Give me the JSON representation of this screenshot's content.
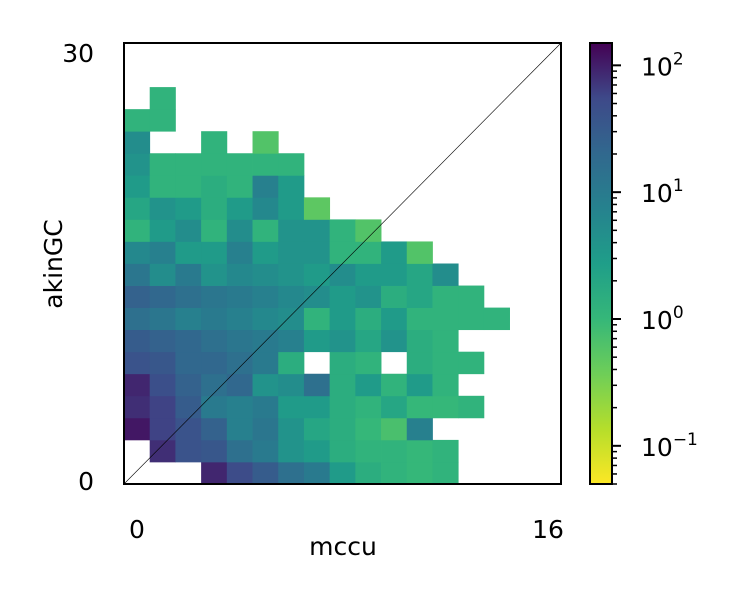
{
  "chart_data": {
    "type": "heatmap",
    "xlabel": "mccu",
    "ylabel": "akinGC",
    "xlim": [
      0,
      16
    ],
    "ylim": [
      0,
      30
    ],
    "x_ticks": [
      "0",
      "16"
    ],
    "y_ticks": [
      "0",
      "30"
    ],
    "x_bins": 17,
    "y_bins": 20,
    "bin_width": 0.941,
    "bin_height": 1.5,
    "diagonal_line": true,
    "grid": false,
    "colormap": "viridis_r",
    "color_scale": "log",
    "colorbar": {
      "range": [
        0.05,
        150
      ],
      "position": "right",
      "ticks": [
        {
          "value": 0.1,
          "base": "10",
          "exp": "−1"
        },
        {
          "value": 1,
          "base": "10",
          "exp": "0"
        },
        {
          "value": 10,
          "base": "10",
          "exp": "1"
        },
        {
          "value": 100,
          "base": "10",
          "exp": "2"
        }
      ]
    },
    "cells": [
      {
        "row": 0,
        "col": 3,
        "value": 90
      },
      {
        "row": 0,
        "col": 4,
        "value": 50
      },
      {
        "row": 0,
        "col": 5,
        "value": 30
      },
      {
        "row": 0,
        "col": 6,
        "value": 15
      },
      {
        "row": 0,
        "col": 7,
        "value": 10
      },
      {
        "row": 0,
        "col": 8,
        "value": 3
      },
      {
        "row": 0,
        "col": 9,
        "value": 1.5
      },
      {
        "row": 0,
        "col": 10,
        "value": 1.2
      },
      {
        "row": 0,
        "col": 11,
        "value": 1
      },
      {
        "row": 0,
        "col": 12,
        "value": 1.2
      },
      {
        "row": 1,
        "col": 1,
        "value": 80
      },
      {
        "row": 1,
        "col": 2,
        "value": 40
      },
      {
        "row": 1,
        "col": 3,
        "value": 35
      },
      {
        "row": 1,
        "col": 4,
        "value": 15
      },
      {
        "row": 1,
        "col": 5,
        "value": 10
      },
      {
        "row": 1,
        "col": 6,
        "value": 4
      },
      {
        "row": 1,
        "col": 7,
        "value": 3
      },
      {
        "row": 1,
        "col": 8,
        "value": 1.5
      },
      {
        "row": 1,
        "col": 9,
        "value": 1.2
      },
      {
        "row": 1,
        "col": 10,
        "value": 1.2
      },
      {
        "row": 1,
        "col": 11,
        "value": 1
      },
      {
        "row": 1,
        "col": 12,
        "value": 1.2
      },
      {
        "row": 2,
        "col": 0,
        "value": 110
      },
      {
        "row": 2,
        "col": 1,
        "value": 60
      },
      {
        "row": 2,
        "col": 2,
        "value": 40
      },
      {
        "row": 2,
        "col": 3,
        "value": 25
      },
      {
        "row": 2,
        "col": 4,
        "value": 8
      },
      {
        "row": 2,
        "col": 5,
        "value": 12
      },
      {
        "row": 2,
        "col": 6,
        "value": 4
      },
      {
        "row": 2,
        "col": 7,
        "value": 2
      },
      {
        "row": 2,
        "col": 8,
        "value": 1.5
      },
      {
        "row": 2,
        "col": 9,
        "value": 1
      },
      {
        "row": 2,
        "col": 10,
        "value": 0.7
      },
      {
        "row": 2,
        "col": 11,
        "value": 8
      },
      {
        "row": 3,
        "col": 0,
        "value": 80
      },
      {
        "row": 3,
        "col": 1,
        "value": 60
      },
      {
        "row": 3,
        "col": 2,
        "value": 30
      },
      {
        "row": 3,
        "col": 3,
        "value": 10
      },
      {
        "row": 3,
        "col": 4,
        "value": 8
      },
      {
        "row": 3,
        "col": 5,
        "value": 10
      },
      {
        "row": 3,
        "col": 6,
        "value": 3
      },
      {
        "row": 3,
        "col": 7,
        "value": 3
      },
      {
        "row": 3,
        "col": 8,
        "value": 1.5
      },
      {
        "row": 3,
        "col": 9,
        "value": 1.2
      },
      {
        "row": 3,
        "col": 10,
        "value": 2
      },
      {
        "row": 3,
        "col": 11,
        "value": 1
      },
      {
        "row": 3,
        "col": 12,
        "value": 1
      },
      {
        "row": 3,
        "col": 13,
        "value": 1.2
      },
      {
        "row": 4,
        "col": 0,
        "value": 90
      },
      {
        "row": 4,
        "col": 1,
        "value": 45
      },
      {
        "row": 4,
        "col": 2,
        "value": 25
      },
      {
        "row": 4,
        "col": 3,
        "value": 15
      },
      {
        "row": 4,
        "col": 4,
        "value": 20
      },
      {
        "row": 4,
        "col": 5,
        "value": 4
      },
      {
        "row": 4,
        "col": 6,
        "value": 5
      },
      {
        "row": 4,
        "col": 7,
        "value": 15
      },
      {
        "row": 4,
        "col": 8,
        "value": 1.5
      },
      {
        "row": 4,
        "col": 9,
        "value": 3
      },
      {
        "row": 4,
        "col": 10,
        "value": 1.2
      },
      {
        "row": 4,
        "col": 11,
        "value": 3
      },
      {
        "row": 4,
        "col": 12,
        "value": 1.2
      },
      {
        "row": 5,
        "col": 0,
        "value": 40
      },
      {
        "row": 5,
        "col": 1,
        "value": 35
      },
      {
        "row": 5,
        "col": 2,
        "value": 20
      },
      {
        "row": 5,
        "col": 3,
        "value": 20
      },
      {
        "row": 5,
        "col": 4,
        "value": 15
      },
      {
        "row": 5,
        "col": 5,
        "value": 10
      },
      {
        "row": 5,
        "col": 6,
        "value": 1.5
      },
      {
        "row": 5,
        "col": 8,
        "value": 1.5
      },
      {
        "row": 5,
        "col": 9,
        "value": 1.2
      },
      {
        "row": 5,
        "col": 11,
        "value": 1.5
      },
      {
        "row": 5,
        "col": 12,
        "value": 1.2
      },
      {
        "row": 5,
        "col": 13,
        "value": 1.2
      },
      {
        "row": 6,
        "col": 0,
        "value": 30
      },
      {
        "row": 6,
        "col": 1,
        "value": 25
      },
      {
        "row": 6,
        "col": 2,
        "value": 20
      },
      {
        "row": 6,
        "col": 3,
        "value": 15
      },
      {
        "row": 6,
        "col": 4,
        "value": 12
      },
      {
        "row": 6,
        "col": 5,
        "value": 10
      },
      {
        "row": 6,
        "col": 6,
        "value": 8
      },
      {
        "row": 6,
        "col": 7,
        "value": 3
      },
      {
        "row": 6,
        "col": 8,
        "value": 4
      },
      {
        "row": 6,
        "col": 9,
        "value": 2
      },
      {
        "row": 6,
        "col": 10,
        "value": 4
      },
      {
        "row": 6,
        "col": 11,
        "value": 1.5
      },
      {
        "row": 6,
        "col": 12,
        "value": 1.2
      },
      {
        "row": 7,
        "col": 0,
        "value": 15
      },
      {
        "row": 7,
        "col": 1,
        "value": 12
      },
      {
        "row": 7,
        "col": 2,
        "value": 8
      },
      {
        "row": 7,
        "col": 3,
        "value": 10
      },
      {
        "row": 7,
        "col": 4,
        "value": 8
      },
      {
        "row": 7,
        "col": 5,
        "value": 6
      },
      {
        "row": 7,
        "col": 6,
        "value": 5
      },
      {
        "row": 7,
        "col": 7,
        "value": 1.2
      },
      {
        "row": 7,
        "col": 8,
        "value": 3
      },
      {
        "row": 7,
        "col": 9,
        "value": 1.5
      },
      {
        "row": 7,
        "col": 10,
        "value": 3
      },
      {
        "row": 7,
        "col": 11,
        "value": 1.2
      },
      {
        "row": 7,
        "col": 12,
        "value": 1.2
      },
      {
        "row": 7,
        "col": 13,
        "value": 1.2
      },
      {
        "row": 7,
        "col": 14,
        "value": 1.2
      },
      {
        "row": 8,
        "col": 0,
        "value": 25
      },
      {
        "row": 8,
        "col": 1,
        "value": 20
      },
      {
        "row": 8,
        "col": 2,
        "value": 15
      },
      {
        "row": 8,
        "col": 3,
        "value": 12
      },
      {
        "row": 8,
        "col": 4,
        "value": 10
      },
      {
        "row": 8,
        "col": 5,
        "value": 8
      },
      {
        "row": 8,
        "col": 6,
        "value": 6
      },
      {
        "row": 8,
        "col": 7,
        "value": 5
      },
      {
        "row": 8,
        "col": 8,
        "value": 3
      },
      {
        "row": 8,
        "col": 9,
        "value": 4
      },
      {
        "row": 8,
        "col": 10,
        "value": 1.5
      },
      {
        "row": 8,
        "col": 11,
        "value": 2
      },
      {
        "row": 8,
        "col": 12,
        "value": 1.2
      },
      {
        "row": 8,
        "col": 13,
        "value": 1.2
      },
      {
        "row": 9,
        "col": 0,
        "value": 12
      },
      {
        "row": 9,
        "col": 1,
        "value": 5
      },
      {
        "row": 9,
        "col": 2,
        "value": 10
      },
      {
        "row": 9,
        "col": 3,
        "value": 4
      },
      {
        "row": 9,
        "col": 4,
        "value": 6
      },
      {
        "row": 9,
        "col": 5,
        "value": 5
      },
      {
        "row": 9,
        "col": 6,
        "value": 4
      },
      {
        "row": 9,
        "col": 7,
        "value": 3
      },
      {
        "row": 9,
        "col": 8,
        "value": 5
      },
      {
        "row": 9,
        "col": 9,
        "value": 3
      },
      {
        "row": 9,
        "col": 10,
        "value": 3
      },
      {
        "row": 9,
        "col": 11,
        "value": 2
      },
      {
        "row": 9,
        "col": 12,
        "value": 5
      },
      {
        "row": 10,
        "col": 0,
        "value": 6
      },
      {
        "row": 10,
        "col": 1,
        "value": 8
      },
      {
        "row": 10,
        "col": 2,
        "value": 3
      },
      {
        "row": 10,
        "col": 3,
        "value": 3
      },
      {
        "row": 10,
        "col": 4,
        "value": 8
      },
      {
        "row": 10,
        "col": 5,
        "value": 3
      },
      {
        "row": 10,
        "col": 6,
        "value": 4
      },
      {
        "row": 10,
        "col": 7,
        "value": 4
      },
      {
        "row": 10,
        "col": 8,
        "value": 1.2
      },
      {
        "row": 10,
        "col": 9,
        "value": 1.2
      },
      {
        "row": 10,
        "col": 10,
        "value": 3
      },
      {
        "row": 10,
        "col": 11,
        "value": 0.6
      },
      {
        "row": 11,
        "col": 0,
        "value": 1.2
      },
      {
        "row": 11,
        "col": 1,
        "value": 3
      },
      {
        "row": 11,
        "col": 2,
        "value": 5
      },
      {
        "row": 11,
        "col": 3,
        "value": 1.2
      },
      {
        "row": 11,
        "col": 4,
        "value": 5
      },
      {
        "row": 11,
        "col": 5,
        "value": 1.2
      },
      {
        "row": 11,
        "col": 6,
        "value": 4
      },
      {
        "row": 11,
        "col": 7,
        "value": 4
      },
      {
        "row": 11,
        "col": 8,
        "value": 1.2
      },
      {
        "row": 11,
        "col": 9,
        "value": 0.6
      },
      {
        "row": 12,
        "col": 0,
        "value": 2
      },
      {
        "row": 12,
        "col": 1,
        "value": 4
      },
      {
        "row": 12,
        "col": 2,
        "value": 3
      },
      {
        "row": 12,
        "col": 3,
        "value": 1.5
      },
      {
        "row": 12,
        "col": 4,
        "value": 3
      },
      {
        "row": 12,
        "col": 5,
        "value": 6
      },
      {
        "row": 12,
        "col": 6,
        "value": 3
      },
      {
        "row": 12,
        "col": 7,
        "value": 0.5
      },
      {
        "row": 13,
        "col": 0,
        "value": 3
      },
      {
        "row": 13,
        "col": 1,
        "value": 1.2
      },
      {
        "row": 13,
        "col": 2,
        "value": 1.2
      },
      {
        "row": 13,
        "col": 3,
        "value": 1.5
      },
      {
        "row": 13,
        "col": 4,
        "value": 1.2
      },
      {
        "row": 13,
        "col": 5,
        "value": 8
      },
      {
        "row": 13,
        "col": 6,
        "value": 3
      },
      {
        "row": 14,
        "col": 0,
        "value": 4
      },
      {
        "row": 14,
        "col": 1,
        "value": 1.2
      },
      {
        "row": 14,
        "col": 2,
        "value": 1.2
      },
      {
        "row": 14,
        "col": 3,
        "value": 1.2
      },
      {
        "row": 14,
        "col": 4,
        "value": 1.2
      },
      {
        "row": 14,
        "col": 5,
        "value": 1.2
      },
      {
        "row": 14,
        "col": 6,
        "value": 1.2
      },
      {
        "row": 15,
        "col": 0,
        "value": 5
      },
      {
        "row": 15,
        "col": 3,
        "value": 1.2
      },
      {
        "row": 15,
        "col": 5,
        "value": 0.6
      },
      {
        "row": 16,
        "col": 0,
        "value": 1.2
      },
      {
        "row": 16,
        "col": 1,
        "value": 1.2
      },
      {
        "row": 17,
        "col": 1,
        "value": 1.2
      }
    ]
  }
}
